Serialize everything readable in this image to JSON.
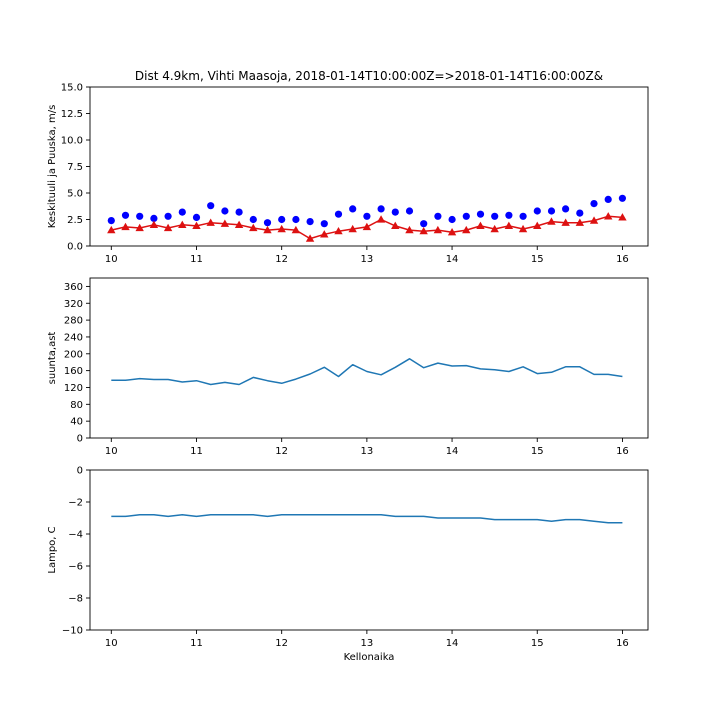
{
  "title": "Dist 4.9km, Vihti Maasoja, 2018-01-14T10:00:00Z=>2018-01-14T16:00:00Z&",
  "chart_data": [
    {
      "type": "scatter",
      "xlabel": "",
      "ylabel": "Keskituuli ja Puuska, m/s",
      "xlim": [
        9.75,
        16.3
      ],
      "ylim": [
        0,
        15
      ],
      "xticks": [
        10,
        11,
        12,
        13,
        14,
        15,
        16
      ],
      "xtick_labels": [
        "10",
        "11",
        "12",
        "13",
        "14",
        "15",
        "16"
      ],
      "yticks": [
        0,
        2.5,
        5,
        7.5,
        10,
        12.5,
        15
      ],
      "ytick_labels": [
        "0.0",
        "2.5",
        "5.0",
        "7.5",
        "10.0",
        "12.5",
        "15.0"
      ],
      "grid": false,
      "series": [
        {
          "color": "#0000ff",
          "marker": "circle",
          "line": false,
          "x": [
            10.0,
            10.1667,
            10.3333,
            10.5,
            10.6667,
            10.8333,
            11.0,
            11.1667,
            11.3333,
            11.5,
            11.6667,
            11.8333,
            12.0,
            12.1667,
            12.3333,
            12.5,
            12.6667,
            12.8333,
            13.0,
            13.1667,
            13.3333,
            13.5,
            13.6667,
            13.8333,
            14.0,
            14.1667,
            14.3333,
            14.5,
            14.6667,
            14.8333,
            15.0,
            15.1667,
            15.3333,
            15.5,
            15.6667,
            15.8333,
            16.0
          ],
          "y": [
            2.4,
            2.9,
            2.8,
            2.6,
            2.8,
            3.2,
            2.7,
            3.8,
            3.3,
            3.2,
            2.5,
            2.2,
            2.5,
            2.5,
            2.3,
            2.1,
            3.0,
            3.5,
            2.8,
            3.5,
            3.2,
            3.3,
            2.1,
            2.8,
            2.5,
            2.8,
            3.0,
            2.8,
            2.9,
            2.8,
            3.3,
            3.3,
            3.5,
            3.1,
            4.0,
            4.4,
            4.5
          ]
        },
        {
          "color": "#dd1111",
          "marker": "triangle",
          "line": true,
          "x": [
            10.0,
            10.1667,
            10.3333,
            10.5,
            10.6667,
            10.8333,
            11.0,
            11.1667,
            11.3333,
            11.5,
            11.6667,
            11.8333,
            12.0,
            12.1667,
            12.3333,
            12.5,
            12.6667,
            12.8333,
            13.0,
            13.1667,
            13.3333,
            13.5,
            13.6667,
            13.8333,
            14.0,
            14.1667,
            14.3333,
            14.5,
            14.6667,
            14.8333,
            15.0,
            15.1667,
            15.3333,
            15.5,
            15.6667,
            15.8333,
            16.0
          ],
          "y": [
            1.5,
            1.8,
            1.7,
            2.0,
            1.7,
            2.0,
            1.9,
            2.2,
            2.1,
            2.0,
            1.7,
            1.5,
            1.6,
            1.5,
            0.7,
            1.1,
            1.4,
            1.6,
            1.8,
            2.5,
            1.9,
            1.5,
            1.4,
            1.5,
            1.3,
            1.5,
            1.9,
            1.6,
            1.9,
            1.6,
            1.9,
            2.3,
            2.2,
            2.2,
            2.4,
            2.8,
            2.7
          ]
        }
      ]
    },
    {
      "type": "line",
      "xlabel": "",
      "ylabel": "suunta,ast",
      "xlim": [
        9.75,
        16.3
      ],
      "ylim": [
        0,
        380
      ],
      "xticks": [
        10,
        11,
        12,
        13,
        14,
        15,
        16
      ],
      "xtick_labels": [
        "10",
        "11",
        "12",
        "13",
        "14",
        "15",
        "16"
      ],
      "yticks": [
        0,
        40,
        80,
        120,
        160,
        200,
        240,
        280,
        320,
        360
      ],
      "ytick_labels": [
        "0",
        "40",
        "80",
        "120",
        "160",
        "200",
        "240",
        "280",
        "320",
        "360"
      ],
      "grid": false,
      "series": [
        {
          "color": "#1f77b4",
          "x": [
            10.0,
            10.1667,
            10.3333,
            10.5,
            10.6667,
            10.8333,
            11.0,
            11.1667,
            11.3333,
            11.5,
            11.6667,
            11.8333,
            12.0,
            12.1667,
            12.3333,
            12.5,
            12.6667,
            12.8333,
            13.0,
            13.1667,
            13.3333,
            13.5,
            13.6667,
            13.8333,
            14.0,
            14.1667,
            14.3333,
            14.5,
            14.6667,
            14.8333,
            15.0,
            15.1667,
            15.3333,
            15.5,
            15.6667,
            15.8333,
            16.0
          ],
          "y": [
            137,
            137,
            141,
            139,
            139,
            133,
            136,
            127,
            132,
            127,
            144,
            136,
            130,
            140,
            152,
            168,
            146,
            174,
            158,
            150,
            168,
            188,
            167,
            178,
            171,
            172,
            164,
            162,
            158,
            169,
            153,
            156,
            169,
            169,
            151,
            151,
            146
          ]
        }
      ]
    },
    {
      "type": "line",
      "xlabel": "Kellonaika",
      "ylabel": "Lampo, C",
      "xlim": [
        9.75,
        16.3
      ],
      "ylim": [
        -10,
        0
      ],
      "xticks": [
        10,
        11,
        12,
        13,
        14,
        15,
        16
      ],
      "xtick_labels": [
        "10",
        "11",
        "12",
        "13",
        "14",
        "15",
        "16"
      ],
      "yticks": [
        -10,
        -8,
        -6,
        -4,
        -2,
        0
      ],
      "ytick_labels": [
        "−10",
        "−8",
        "−6",
        "−4",
        "−2",
        "0"
      ],
      "grid": false,
      "series": [
        {
          "color": "#1f77b4",
          "x": [
            10.0,
            10.1667,
            10.3333,
            10.5,
            10.6667,
            10.8333,
            11.0,
            11.1667,
            11.3333,
            11.5,
            11.6667,
            11.8333,
            12.0,
            12.1667,
            12.3333,
            12.5,
            12.6667,
            12.8333,
            13.0,
            13.1667,
            13.3333,
            13.5,
            13.6667,
            13.8333,
            14.0,
            14.1667,
            14.3333,
            14.5,
            14.6667,
            14.8333,
            15.0,
            15.1667,
            15.3333,
            15.5,
            15.6667,
            15.8333,
            16.0
          ],
          "y": [
            -2.9,
            -2.9,
            -2.8,
            -2.8,
            -2.9,
            -2.8,
            -2.9,
            -2.8,
            -2.8,
            -2.8,
            -2.8,
            -2.9,
            -2.8,
            -2.8,
            -2.8,
            -2.8,
            -2.8,
            -2.8,
            -2.8,
            -2.8,
            -2.9,
            -2.9,
            -2.9,
            -3.0,
            -3.0,
            -3.0,
            -3.0,
            -3.1,
            -3.1,
            -3.1,
            -3.1,
            -3.2,
            -3.1,
            -3.1,
            -3.2,
            -3.3,
            -3.3
          ]
        }
      ]
    }
  ]
}
